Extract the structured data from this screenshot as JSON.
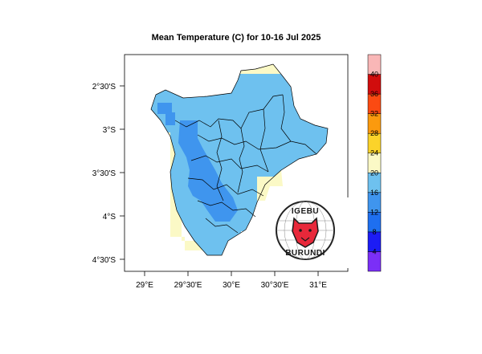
{
  "title": "Mean Temperature (C) for 10-16 Jul 2025",
  "map": {
    "lon_ticks": [
      "29°E",
      "29°30'E",
      "30°E",
      "30°30'E",
      "31°E"
    ],
    "lat_ticks": [
      "2°30'S",
      "3°S",
      "3°30'S",
      "4°S",
      "4°30'S"
    ],
    "grid": true
  },
  "colorbar": {
    "labels": [
      "4",
      "8",
      "12",
      "16",
      "20",
      "24",
      "28",
      "32",
      "36",
      "40"
    ],
    "colors": [
      "#7b2ff7",
      "#1c1cf5",
      "#1e6ff0",
      "#3f95ee",
      "#6ec1ef",
      "#fbf9c6",
      "#fbd32a",
      "#fb9a0e",
      "#fb4a12",
      "#d10d0d",
      "#f9b7b7"
    ]
  },
  "colors": {
    "light_blue": "#6ec1ef",
    "mid_blue": "#3f95ee",
    "pale_yellow": "#fbf9c6",
    "green": "#2fcb3a"
  },
  "logo": {
    "top_text": "IGEBU",
    "bottom_text": "BURUNDI"
  }
}
